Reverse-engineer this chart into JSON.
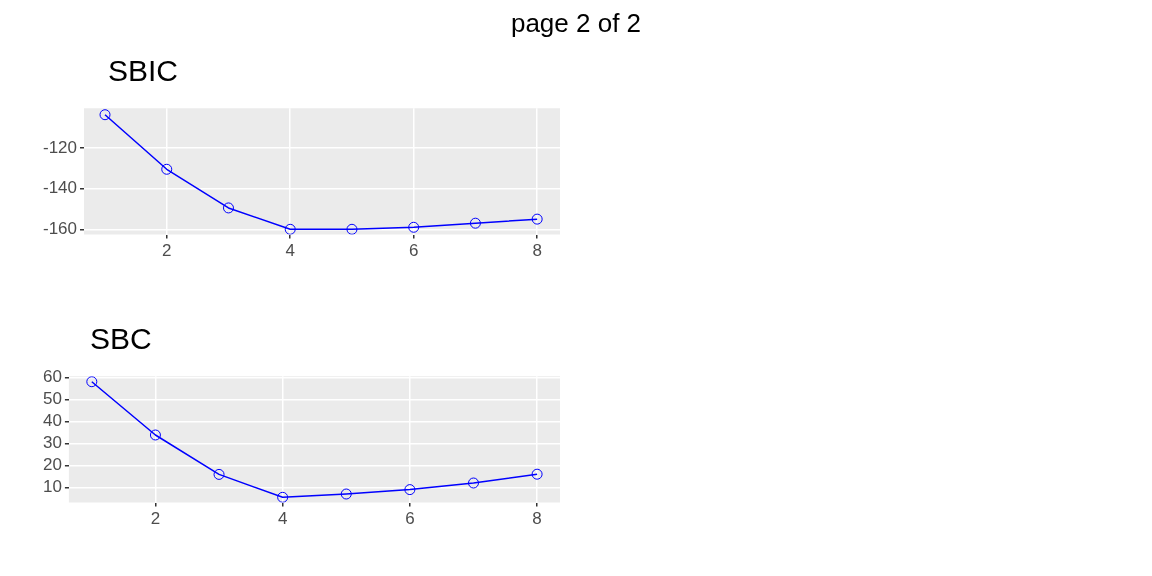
{
  "chart_data": [
    {
      "type": "line",
      "title": "SBIC",
      "annotations": [
        "page 2 of 2"
      ],
      "x": [
        1,
        2,
        3,
        4,
        5,
        6,
        7,
        8
      ],
      "series": [
        {
          "color": "#0000ff",
          "values": [
            -103.7,
            -130.5,
            -149.5,
            -160,
            -160,
            -159,
            -157,
            -155
          ]
        }
      ],
      "xlim": [
        0.66,
        8.37
      ],
      "xticks": [
        2,
        4,
        6,
        8
      ],
      "ylim": [
        -162.6,
        -100.5
      ],
      "yticks": [
        -160,
        -140,
        -120
      ],
      "grid": true,
      "legend": false,
      "marker": "circle",
      "line_style": "solid"
    },
    {
      "type": "line",
      "title": "SBC",
      "x": [
        1,
        2,
        3,
        4,
        5,
        6,
        7,
        8
      ],
      "series": [
        {
          "color": "#0000ff",
          "values": [
            58,
            33.8,
            15.9,
            5.5,
            7,
            9,
            12,
            16
          ]
        }
      ],
      "xlim": [
        0.64,
        8.36
      ],
      "xticks": [
        2,
        4,
        6,
        8
      ],
      "ylim": [
        3.1,
        60.5
      ],
      "yticks": [
        10,
        20,
        30,
        40,
        50,
        60
      ],
      "grid": true,
      "legend": false,
      "marker": "circle",
      "line_style": "solid"
    }
  ]
}
